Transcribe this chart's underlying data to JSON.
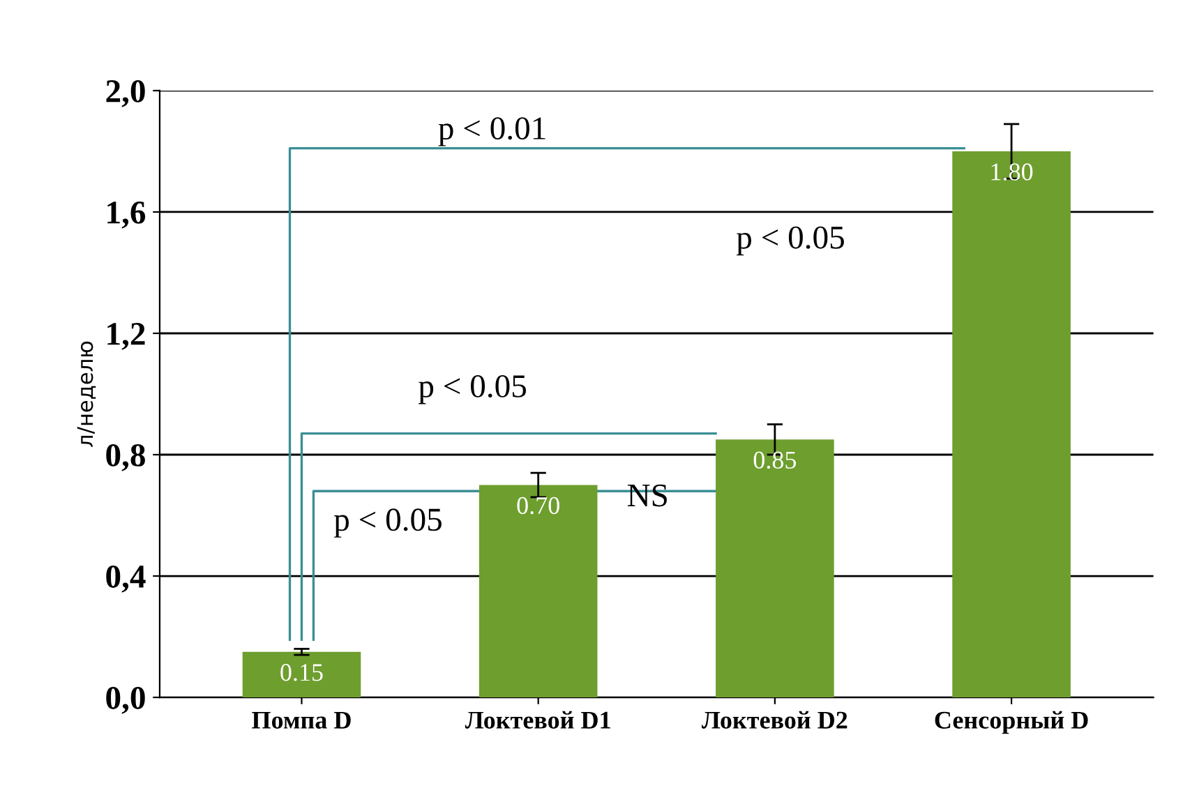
{
  "chart_data": {
    "type": "bar",
    "ylabel": "л/неделю",
    "categories": [
      "Помпа D",
      "Локтевой D1",
      "Локтевой D2",
      "Сенсорный D"
    ],
    "values": [
      0.15,
      0.7,
      0.85,
      1.8
    ],
    "errors": [
      0.01,
      0.04,
      0.05,
      0.09
    ],
    "value_labels": [
      "0.15",
      "0.70",
      "0.85",
      "1.80"
    ],
    "color": "#6e9e2e",
    "ylim": [
      0,
      2
    ],
    "yticks": [
      {
        "value": 0,
        "label": "0,0"
      },
      {
        "value": 0.4,
        "label": "0,4"
      },
      {
        "value": 0.8,
        "label": "0,8"
      },
      {
        "value": 1.2,
        "label": "1,2"
      },
      {
        "value": 1.6,
        "label": "1,6"
      },
      {
        "value": 2,
        "label": "2,0"
      }
    ],
    "grid": "y",
    "annotations": [
      "p < 0.01",
      "p < 0.05",
      "p < 0.05",
      "p < 0.05",
      "NS"
    ]
  }
}
